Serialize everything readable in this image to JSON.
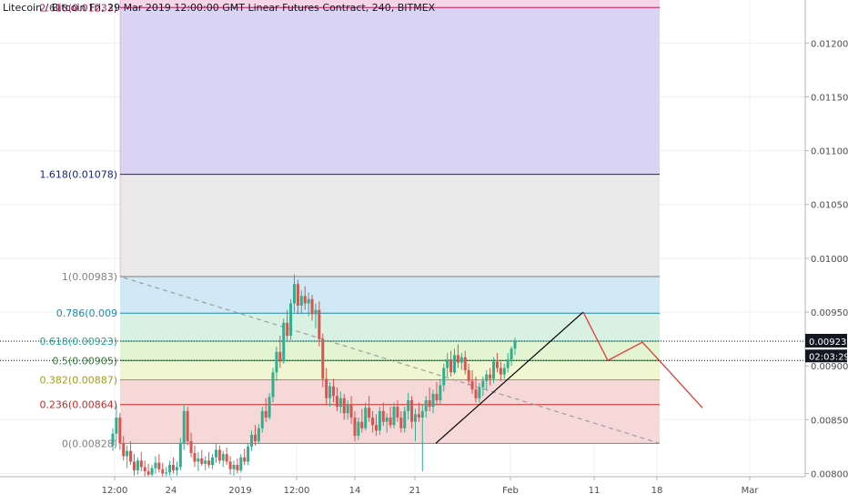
{
  "header": {
    "title": "Litecoin / Bitcoin Fri, 29 Mar 2019 12:00:00 GMT Linear Futures Contract, 240, BITMEX"
  },
  "chart_data": {
    "type": "candlestick",
    "y_axis": {
      "range": [
        0.00797,
        0.0124
      ],
      "ticks": [
        "0.00800",
        "0.00850",
        "0.00900",
        "0.00950",
        "0.01000",
        "0.01050",
        "0.01100",
        "0.01150",
        "0.01200"
      ]
    },
    "x_axis": {
      "tick_labels": [
        "12:00",
        "24",
        "2019",
        "12:00",
        "14",
        "21",
        "Feb",
        "11",
        "18",
        "Mar"
      ]
    },
    "price_label": {
      "value": "0.00923",
      "countdown": "02:03:29",
      "marker_value": 0.00905
    },
    "fibonacci": {
      "start_x": "12:00",
      "end_x": "18",
      "levels": [
        {
          "ratio": 2.618,
          "value": 0.01233,
          "label": "2.618(0.01233)",
          "color": "#c2185b",
          "fill": "#f4cccc"
        },
        {
          "ratio": 1.618,
          "value": 0.01078,
          "label": "1.618(0.01078)",
          "color": "#1a237e",
          "fill": "#d7d2f3"
        },
        {
          "ratio": 1,
          "value": 0.00983,
          "label": "1(0.00983)",
          "color": "#808080",
          "fill": "#e8e8e8"
        },
        {
          "ratio": 0.786,
          "value": 0.00949,
          "label": "0.786(0.009",
          "color": "#1e88b5",
          "fill": "#cfe7f4"
        },
        {
          "ratio": 0.618,
          "value": 0.00923,
          "label": "0.618(0.00923)",
          "color": "#26a69a",
          "fill": "#d6f0e0"
        },
        {
          "ratio": 0.5,
          "value": 0.00905,
          "label": "0.5(0.00905)",
          "color": "#2e7d32",
          "fill": "#e1f3d0"
        },
        {
          "ratio": 0.382,
          "value": 0.00887,
          "label": "0.382(0.00887)",
          "color": "#9e9d24",
          "fill": "#eef5cf"
        },
        {
          "ratio": 0.236,
          "value": 0.00864,
          "label": "0.236(0.00864)",
          "color": "#c62828",
          "fill": "#f6d6d6"
        },
        {
          "ratio": 0,
          "value": 0.00828,
          "label": "0(0.00828)",
          "color": "#808080",
          "fill": "#f6d6d6"
        }
      ]
    },
    "colors": {
      "up": "#2eaf8f",
      "down": "#d9534f",
      "projection": "#e53935",
      "trendline": "#000000",
      "fib_diagonal": "#9e9e9e"
    },
    "candles": [
      [
        0.00826,
        0.00842,
        0.00821,
        0.00837
      ],
      [
        0.00837,
        0.00863,
        0.0083,
        0.00852
      ],
      [
        0.00852,
        0.00856,
        0.00822,
        0.00828
      ],
      [
        0.00828,
        0.00835,
        0.00812,
        0.00816
      ],
      [
        0.00816,
        0.00826,
        0.00805,
        0.00821
      ],
      [
        0.00821,
        0.0083,
        0.00808,
        0.00811
      ],
      [
        0.00811,
        0.00818,
        0.00798,
        0.00803
      ],
      [
        0.00803,
        0.00815,
        0.00799,
        0.00812
      ],
      [
        0.00812,
        0.0082,
        0.00802,
        0.00806
      ],
      [
        0.00806,
        0.00812,
        0.00797,
        0.00802
      ],
      [
        0.00802,
        0.00809,
        0.00797,
        0.00799
      ],
      [
        0.00799,
        0.00808,
        0.00797,
        0.00805
      ],
      [
        0.00805,
        0.00816,
        0.008,
        0.0081
      ],
      [
        0.0081,
        0.00818,
        0.00801,
        0.00804
      ],
      [
        0.00804,
        0.0081,
        0.00797,
        0.008
      ],
      [
        0.008,
        0.00806,
        0.00797,
        0.00801
      ],
      [
        0.00801,
        0.00812,
        0.00798,
        0.00808
      ],
      [
        0.00808,
        0.00815,
        0.008,
        0.00803
      ],
      [
        0.00803,
        0.00811,
        0.00798,
        0.00806
      ],
      [
        0.00806,
        0.00833,
        0.00803,
        0.00828
      ],
      [
        0.00828,
        0.00864,
        0.00822,
        0.00858
      ],
      [
        0.00858,
        0.00862,
        0.00826,
        0.0083
      ],
      [
        0.0083,
        0.00838,
        0.00815,
        0.00819
      ],
      [
        0.00819,
        0.00826,
        0.00806,
        0.00811
      ],
      [
        0.00811,
        0.0082,
        0.00802,
        0.00814
      ],
      [
        0.00814,
        0.00822,
        0.00807,
        0.00809
      ],
      [
        0.00809,
        0.00816,
        0.00803,
        0.00812
      ],
      [
        0.00812,
        0.0082,
        0.00805,
        0.00808
      ],
      [
        0.00808,
        0.00818,
        0.00804,
        0.00815
      ],
      [
        0.00815,
        0.00828,
        0.0081,
        0.00822
      ],
      [
        0.00822,
        0.00826,
        0.00809,
        0.00812
      ],
      [
        0.00812,
        0.00821,
        0.00806,
        0.00818
      ],
      [
        0.00818,
        0.00824,
        0.00808,
        0.00811
      ],
      [
        0.00811,
        0.00816,
        0.00799,
        0.00804
      ],
      [
        0.00804,
        0.00812,
        0.00798,
        0.00808
      ],
      [
        0.00808,
        0.00814,
        0.008,
        0.00803
      ],
      [
        0.00803,
        0.00818,
        0.00801,
        0.00815
      ],
      [
        0.00815,
        0.00823,
        0.00808,
        0.00811
      ],
      [
        0.00811,
        0.00828,
        0.00808,
        0.00825
      ],
      [
        0.00825,
        0.0084,
        0.00821,
        0.00836
      ],
      [
        0.00836,
        0.00845,
        0.00826,
        0.0083
      ],
      [
        0.0083,
        0.00846,
        0.00828,
        0.00842
      ],
      [
        0.00842,
        0.00862,
        0.00838,
        0.00858
      ],
      [
        0.00858,
        0.0087,
        0.00848,
        0.00852
      ],
      [
        0.00852,
        0.00875,
        0.0085,
        0.00871
      ],
      [
        0.00871,
        0.00898,
        0.00866,
        0.00894
      ],
      [
        0.00894,
        0.00918,
        0.00886,
        0.00913
      ],
      [
        0.00913,
        0.00928,
        0.00898,
        0.00904
      ],
      [
        0.00904,
        0.00944,
        0.00902,
        0.0094
      ],
      [
        0.0094,
        0.00952,
        0.00922,
        0.00928
      ],
      [
        0.00928,
        0.00962,
        0.00924,
        0.00958
      ],
      [
        0.00958,
        0.00985,
        0.0095,
        0.00976
      ],
      [
        0.00976,
        0.0098,
        0.00948,
        0.00956
      ],
      [
        0.00956,
        0.0097,
        0.00948,
        0.00965
      ],
      [
        0.00965,
        0.00974,
        0.00952,
        0.00958
      ],
      [
        0.00958,
        0.00968,
        0.00946,
        0.00962
      ],
      [
        0.00962,
        0.00966,
        0.00942,
        0.00948
      ],
      [
        0.00948,
        0.00958,
        0.00935,
        0.00952
      ],
      [
        0.00952,
        0.0096,
        0.00918,
        0.00925
      ],
      [
        0.00925,
        0.0093,
        0.0088,
        0.00888
      ],
      [
        0.00888,
        0.00898,
        0.00864,
        0.0087
      ],
      [
        0.0087,
        0.00885,
        0.00862,
        0.00881
      ],
      [
        0.00881,
        0.00888,
        0.00866,
        0.00872
      ],
      [
        0.00872,
        0.0088,
        0.00858,
        0.00862
      ],
      [
        0.00862,
        0.00876,
        0.00856,
        0.0087
      ],
      [
        0.0087,
        0.00874,
        0.0085,
        0.00856
      ],
      [
        0.00856,
        0.00868,
        0.0085,
        0.00864
      ],
      [
        0.00864,
        0.00872,
        0.00846,
        0.00852
      ],
      [
        0.00852,
        0.00858,
        0.0083,
        0.00835
      ],
      [
        0.00835,
        0.00852,
        0.00831,
        0.00848
      ],
      [
        0.00848,
        0.0086,
        0.00838,
        0.00842
      ],
      [
        0.00842,
        0.00866,
        0.0084,
        0.00861
      ],
      [
        0.00861,
        0.00872,
        0.00848,
        0.00852
      ],
      [
        0.00852,
        0.00858,
        0.00838,
        0.00845
      ],
      [
        0.00845,
        0.00855,
        0.00835,
        0.0084
      ],
      [
        0.0084,
        0.00862,
        0.00836,
        0.00858
      ],
      [
        0.00858,
        0.00866,
        0.00844,
        0.00848
      ],
      [
        0.00848,
        0.00856,
        0.00838,
        0.00852
      ],
      [
        0.00852,
        0.00862,
        0.00842,
        0.00845
      ],
      [
        0.00845,
        0.00866,
        0.00842,
        0.00862
      ],
      [
        0.00862,
        0.00868,
        0.00848,
        0.00852
      ],
      [
        0.00852,
        0.00858,
        0.00838,
        0.00842
      ],
      [
        0.00842,
        0.00862,
        0.00838,
        0.00858
      ],
      [
        0.00858,
        0.00875,
        0.0085,
        0.00868
      ],
      [
        0.00868,
        0.00872,
        0.00842,
        0.00848
      ],
      [
        0.00848,
        0.0086,
        0.0083,
        0.00855
      ],
      [
        0.00855,
        0.00866,
        0.00848,
        0.00852
      ],
      [
        0.00852,
        0.00864,
        0.00802,
        0.00858
      ],
      [
        0.00858,
        0.00872,
        0.00852,
        0.00868
      ],
      [
        0.00868,
        0.0088,
        0.00858,
        0.00862
      ],
      [
        0.00862,
        0.00878,
        0.00856,
        0.00874
      ],
      [
        0.00874,
        0.00885,
        0.00864,
        0.00868
      ],
      [
        0.00868,
        0.00888,
        0.00864,
        0.00882
      ],
      [
        0.00882,
        0.00902,
        0.00876,
        0.00898
      ],
      [
        0.00898,
        0.00912,
        0.0089,
        0.00906
      ],
      [
        0.00906,
        0.00914,
        0.0089,
        0.00894
      ],
      [
        0.00894,
        0.00916,
        0.00892,
        0.0091
      ],
      [
        0.0091,
        0.0092,
        0.00898,
        0.00903
      ],
      [
        0.00903,
        0.00912,
        0.00896,
        0.00908
      ],
      [
        0.00908,
        0.00914,
        0.00892,
        0.00896
      ],
      [
        0.00896,
        0.00902,
        0.00882,
        0.00886
      ],
      [
        0.00886,
        0.00896,
        0.00874,
        0.00878
      ],
      [
        0.00878,
        0.0089,
        0.00866,
        0.0087
      ],
      [
        0.0087,
        0.00884,
        0.00866,
        0.0088
      ],
      [
        0.0088,
        0.0089,
        0.00872,
        0.00886
      ],
      [
        0.00886,
        0.00896,
        0.00878,
        0.00892
      ],
      [
        0.00892,
        0.00898,
        0.00882,
        0.00888
      ],
      [
        0.00888,
        0.00908,
        0.00884,
        0.00904
      ],
      [
        0.00904,
        0.00912,
        0.00894,
        0.00898
      ],
      [
        0.00898,
        0.00904,
        0.00886,
        0.00892
      ],
      [
        0.00892,
        0.00902,
        0.00888,
        0.00898
      ],
      [
        0.00898,
        0.00912,
        0.00894,
        0.00906
      ],
      [
        0.00906,
        0.00918,
        0.009,
        0.00916
      ],
      [
        0.00916,
        0.00926,
        0.0091,
        0.00923
      ]
    ]
  }
}
